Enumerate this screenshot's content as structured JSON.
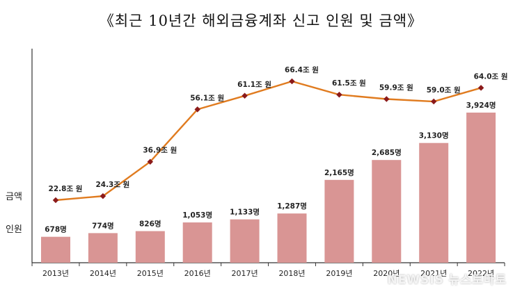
{
  "title": "《최근 10년간 해외금융계좌 신고 인원 및 금액》",
  "watermark": "NEWSIS 뉴스토마토",
  "chart_data": {
    "type": "bar+line",
    "categories": [
      "2013년",
      "2014년",
      "2015년",
      "2016년",
      "2017년",
      "2018년",
      "2019년",
      "2020년",
      "2021년",
      "2022년"
    ],
    "series": [
      {
        "name": "인원",
        "type": "bar",
        "values": [
          678,
          774,
          826,
          1053,
          1133,
          1287,
          2165,
          2685,
          3130,
          3924
        ],
        "labels": [
          "678명",
          "774명",
          "826명",
          "1,053명",
          "1,133명",
          "1,287명",
          "2,165명",
          "2,685명",
          "3,130명",
          "3,924명"
        ],
        "color": "#d99594"
      },
      {
        "name": "금액",
        "type": "line",
        "values": [
          22.8,
          24.3,
          36.9,
          56.1,
          61.1,
          66.4,
          61.5,
          59.9,
          59.0,
          64.0
        ],
        "labels": [
          "22.8조 원",
          "24.3조 원",
          "36.9조 원",
          "56.1조 원",
          "61.1조 원",
          "66.4조 원",
          "61.5조 원",
          "59.9조 원",
          "59.0조 원",
          "64.0조 원"
        ],
        "color": "#e07b1f",
        "marker_color": "#8b1a1a"
      }
    ],
    "axis_labels": {
      "bar": "인원",
      "line": "금액"
    },
    "grid": false
  }
}
